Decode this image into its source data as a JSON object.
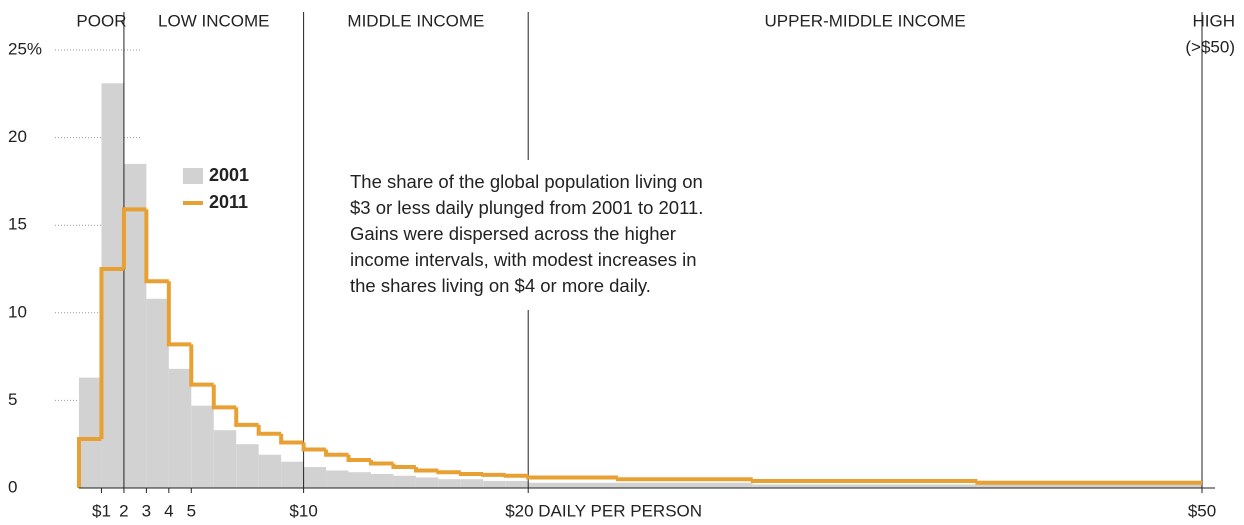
{
  "chart_data": {
    "type": "histogram",
    "bins": [
      0,
      1,
      2,
      3,
      4,
      5,
      6,
      7,
      8,
      9,
      10,
      11,
      12,
      13,
      14,
      15,
      16,
      17,
      18,
      19,
      20,
      24,
      30,
      40,
      50
    ],
    "series": [
      {
        "name": "2001",
        "color": "#d2d2d2",
        "style": "bars",
        "values": [
          6.3,
          23.1,
          18.5,
          10.8,
          6.8,
          4.7,
          3.3,
          2.5,
          1.9,
          1.5,
          1.2,
          1.0,
          0.9,
          0.8,
          0.7,
          0.6,
          0.5,
          0.5,
          0.4,
          0.4,
          0.3,
          0.3,
          0.2,
          0.2
        ]
      },
      {
        "name": "2011",
        "color": "#e8a032",
        "style": "step",
        "values": [
          2.8,
          12.5,
          15.9,
          11.8,
          8.2,
          5.9,
          4.6,
          3.6,
          3.1,
          2.6,
          2.2,
          1.9,
          1.6,
          1.4,
          1.2,
          1.0,
          0.9,
          0.8,
          0.75,
          0.7,
          0.6,
          0.5,
          0.4,
          0.3
        ]
      }
    ],
    "xlim": [
      0,
      50
    ],
    "xticks": [
      {
        "value": 1,
        "label": "$1"
      },
      2,
      3,
      4,
      5,
      {
        "value": 10,
        "label": "$10"
      },
      {
        "value": 20,
        "label": "$20 DAILY PER PERSON"
      },
      {
        "value": 50,
        "label": "$50"
      }
    ],
    "ylim": [
      0,
      25
    ],
    "yticks": [
      0,
      5,
      10,
      15,
      {
        "value": 20,
        "label": "20"
      },
      {
        "value": 25,
        "label": "25%"
      }
    ],
    "grid": "dotted",
    "regions": [
      {
        "label": "POOR",
        "from": 0,
        "to": 2
      },
      {
        "label": "LOW INCOME",
        "from": 2,
        "to": 10
      },
      {
        "label": "MIDDLE INCOME",
        "from": 10,
        "to": 20
      },
      {
        "label": "UPPER-MIDDLE INCOME",
        "from": 20,
        "to": 50
      },
      {
        "label": "HIGH",
        "sublabel": "(>$50)",
        "from": 50,
        "to": 50
      }
    ],
    "annotation": [
      "The share of the global population living on",
      "$3 or less daily plunged from 2001 to 2011.",
      "Gains were dispersed across the higher",
      "income intervals, with modest increases in",
      "the shares living on $4 or more daily."
    ]
  }
}
